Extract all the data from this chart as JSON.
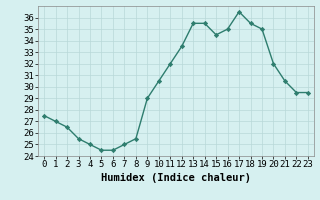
{
  "x": [
    0,
    1,
    2,
    3,
    4,
    5,
    6,
    7,
    8,
    9,
    10,
    11,
    12,
    13,
    14,
    15,
    16,
    17,
    18,
    19,
    20,
    21,
    22,
    23
  ],
  "y": [
    27.5,
    27.0,
    26.5,
    25.5,
    25.0,
    24.5,
    24.5,
    25.0,
    25.5,
    29.0,
    30.5,
    32.0,
    33.5,
    35.5,
    35.5,
    34.5,
    35.0,
    36.5,
    35.5,
    35.0,
    32.0,
    30.5,
    29.5,
    29.5
  ],
  "line_color": "#2e7d6e",
  "marker": "D",
  "marker_size": 2.2,
  "line_width": 1.0,
  "bg_color": "#d6f0f0",
  "grid_color": "#b8d8d8",
  "xlabel": "Humidex (Indice chaleur)",
  "xlabel_fontsize": 7.5,
  "tick_fontsize": 6.5,
  "ylim": [
    24,
    37
  ],
  "xlim": [
    -0.5,
    23.5
  ],
  "yticks": [
    24,
    25,
    26,
    27,
    28,
    29,
    30,
    31,
    32,
    33,
    34,
    35,
    36
  ],
  "xticks": [
    0,
    1,
    2,
    3,
    4,
    5,
    6,
    7,
    8,
    9,
    10,
    11,
    12,
    13,
    14,
    15,
    16,
    17,
    18,
    19,
    20,
    21,
    22,
    23
  ]
}
